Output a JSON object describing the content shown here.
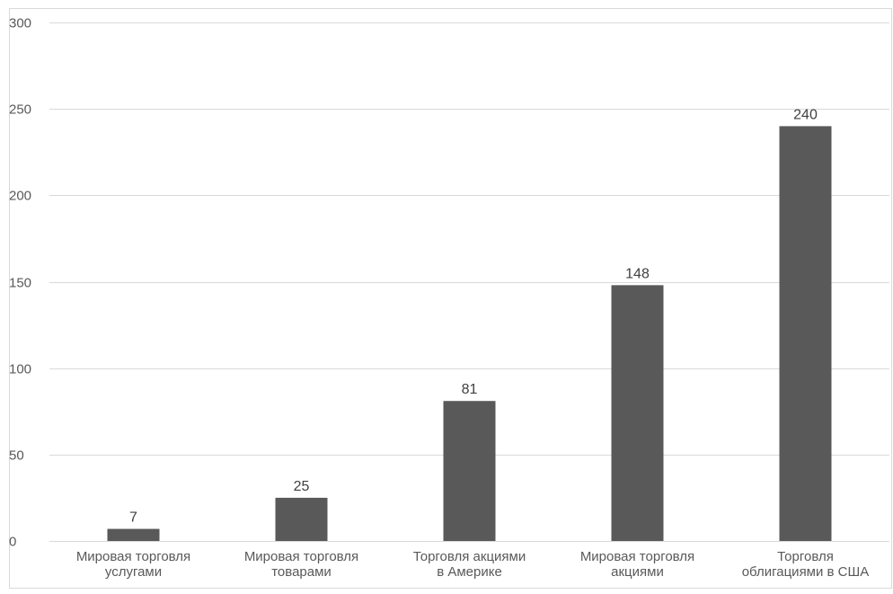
{
  "chart_data": {
    "type": "bar",
    "categories": [
      [
        "Мировая торговля",
        "услугами"
      ],
      [
        "Мировая торговля",
        "товарами"
      ],
      [
        "Торговля акциями",
        "в Америке"
      ],
      [
        "Мировая торговля",
        "акциями"
      ],
      [
        "Торговля",
        "облигациями в США"
      ]
    ],
    "values": [
      7,
      25,
      81,
      148,
      240
    ],
    "data_labels": [
      "7",
      "25",
      "81",
      "148",
      "240"
    ],
    "title": "",
    "xlabel": "",
    "ylabel": "",
    "ylim": [
      0,
      300
    ],
    "yticks": [
      0,
      50,
      100,
      150,
      200,
      250,
      300
    ],
    "ytick_labels": [
      "0",
      "50",
      "100",
      "150",
      "200",
      "250",
      "300"
    ],
    "grid": true,
    "legend": "none",
    "colors": {
      "bar": "#595959",
      "grid": "#d9d9d9",
      "frame": "#d9d9d9",
      "text": "#595959"
    }
  }
}
